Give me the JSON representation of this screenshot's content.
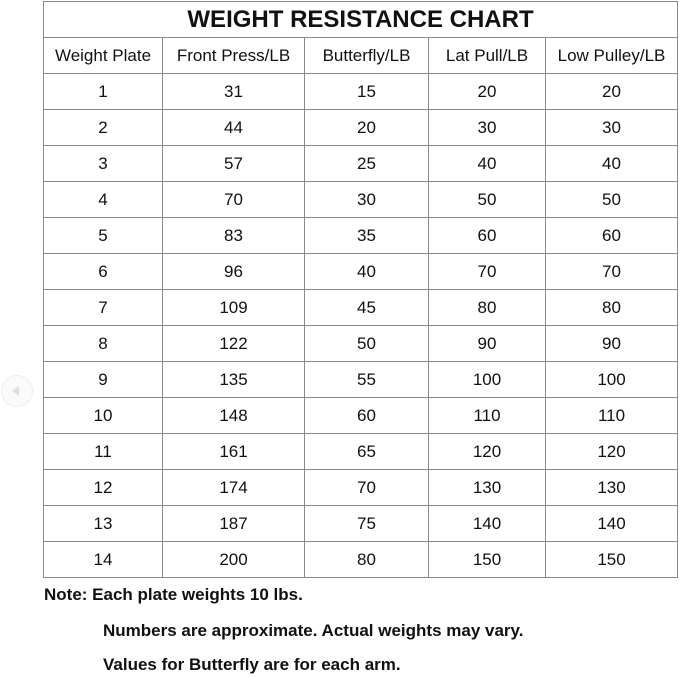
{
  "title": "WEIGHT RESISTANCE CHART",
  "headers": [
    "Weight Plate",
    "Front Press/LB",
    "Butterfly/LB",
    "Lat Pull/LB",
    "Low Pulley/LB"
  ],
  "rows": [
    [
      "1",
      "31",
      "15",
      "20",
      "20"
    ],
    [
      "2",
      "44",
      "20",
      "30",
      "30"
    ],
    [
      "3",
      "57",
      "25",
      "40",
      "40"
    ],
    [
      "4",
      "70",
      "30",
      "50",
      "50"
    ],
    [
      "5",
      "83",
      "35",
      "60",
      "60"
    ],
    [
      "6",
      "96",
      "40",
      "70",
      "70"
    ],
    [
      "7",
      "109",
      "45",
      "80",
      "80"
    ],
    [
      "8",
      "122",
      "50",
      "90",
      "90"
    ],
    [
      "9",
      "135",
      "55",
      "100",
      "100"
    ],
    [
      "10",
      "148",
      "60",
      "110",
      "110"
    ],
    [
      "11",
      "161",
      "65",
      "120",
      "120"
    ],
    [
      "12",
      "174",
      "70",
      "130",
      "130"
    ],
    [
      "13",
      "187",
      "75",
      "140",
      "140"
    ],
    [
      "14",
      "200",
      "80",
      "150",
      "150"
    ]
  ],
  "notes": [
    "Note: Each plate weights 10 lbs.",
    "Numbers are approximate. Actual weights may vary.",
    "Values for Butterfly are for each arm."
  ],
  "nav": {
    "back_icon": "chevron-left-icon"
  }
}
